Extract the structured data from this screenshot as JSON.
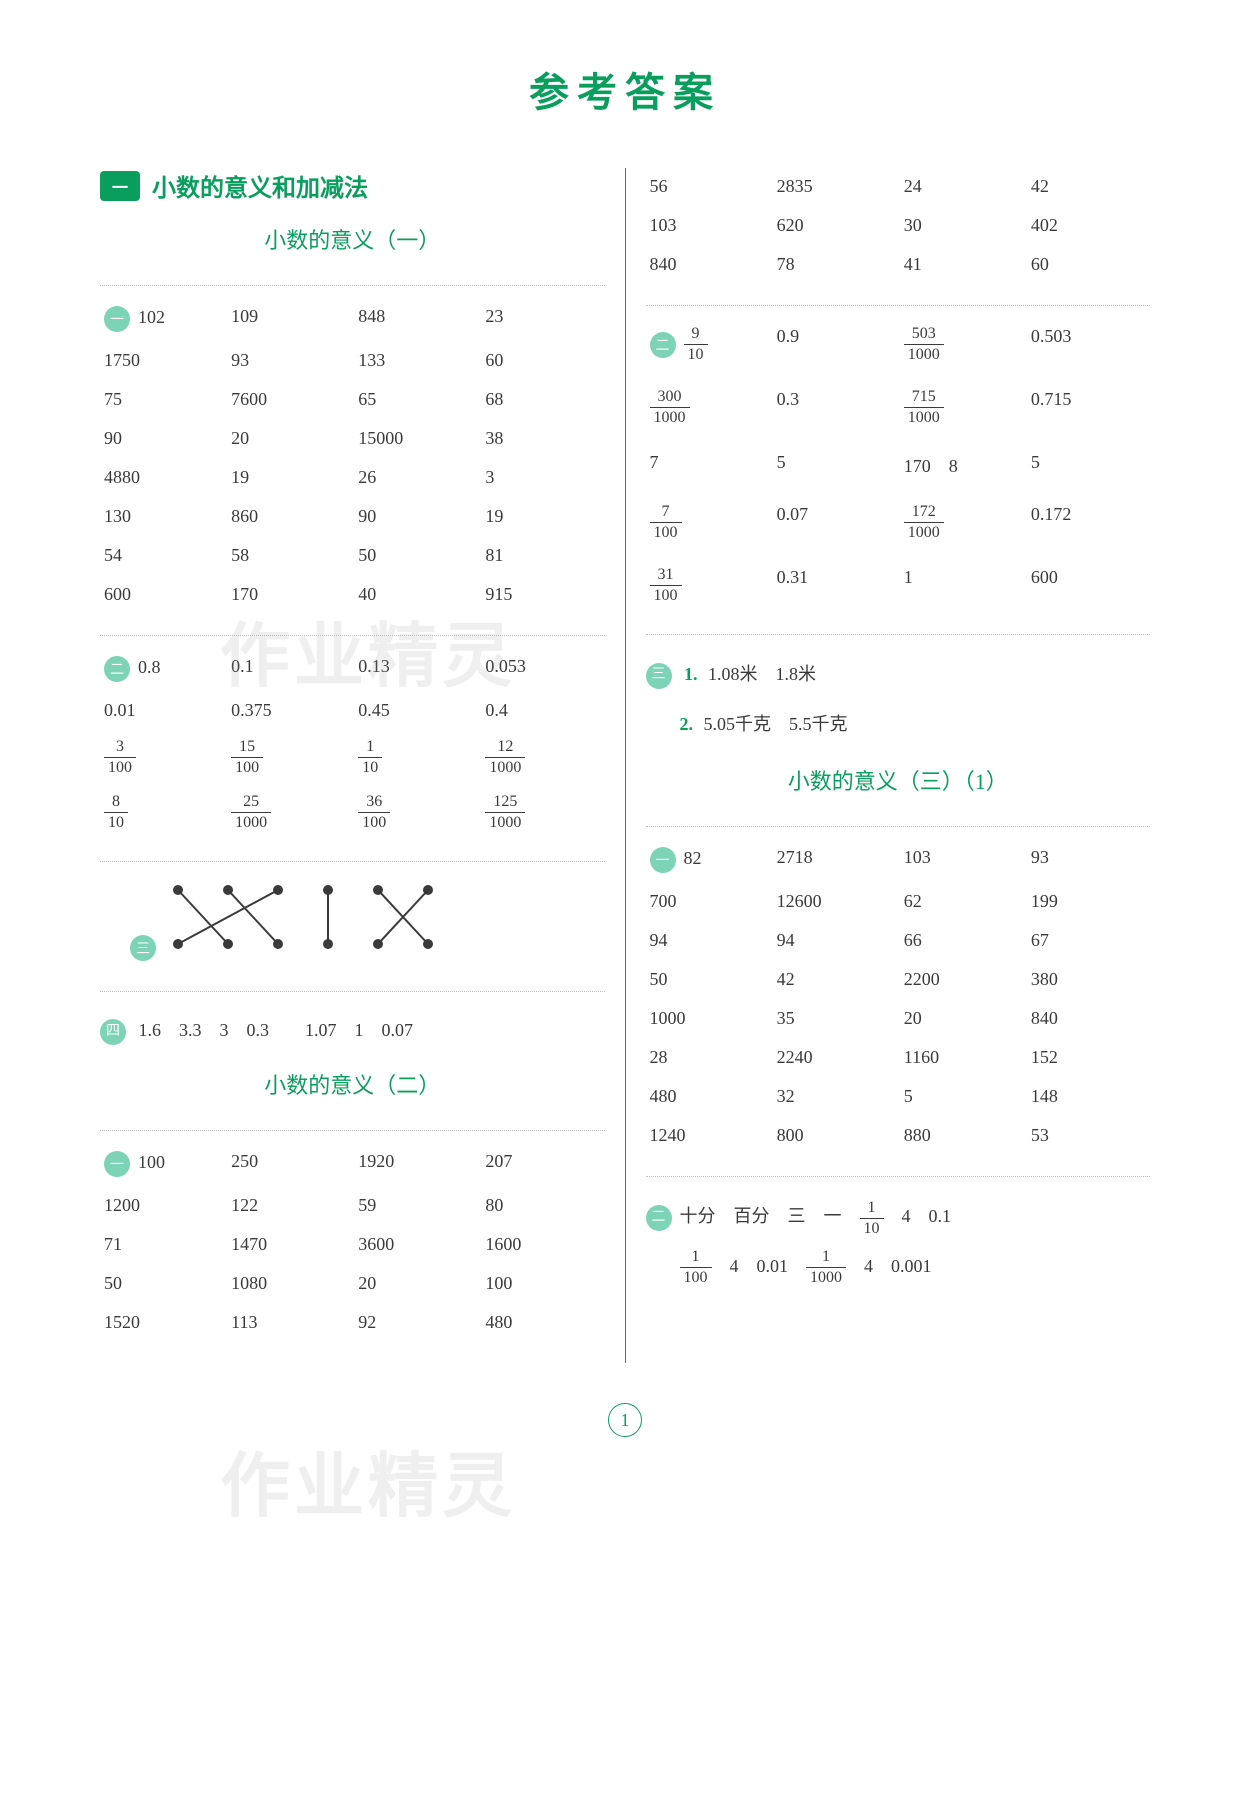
{
  "page_title": "参考答案",
  "page_number": "1",
  "chapter": {
    "badge": "一",
    "title": "小数的意义和加减法"
  },
  "left": {
    "section1": {
      "title": "小数的意义（一）",
      "q1": {
        "badge": "一",
        "rows": [
          [
            "102",
            "109",
            "848",
            "23"
          ],
          [
            "1750",
            "93",
            "133",
            "60"
          ],
          [
            "75",
            "7600",
            "65",
            "68"
          ],
          [
            "90",
            "20",
            "15000",
            "38"
          ],
          [
            "4880",
            "19",
            "26",
            "3"
          ],
          [
            "130",
            "860",
            "90",
            "19"
          ],
          [
            "54",
            "58",
            "50",
            "81"
          ],
          [
            "600",
            "170",
            "40",
            "915"
          ]
        ]
      },
      "q2": {
        "badge": "二",
        "rows_text": [
          [
            "0.8",
            "0.1",
            "0.13",
            "0.053"
          ],
          [
            "0.01",
            "0.375",
            "0.45",
            "0.4"
          ]
        ],
        "rows_frac": [
          [
            {
              "n": "3",
              "d": "100"
            },
            {
              "n": "15",
              "d": "100"
            },
            {
              "n": "1",
              "d": "10"
            },
            {
              "n": "12",
              "d": "1000"
            }
          ],
          [
            {
              "n": "8",
              "d": "10"
            },
            {
              "n": "25",
              "d": "1000"
            },
            {
              "n": "36",
              "d": "100"
            },
            {
              "n": "125",
              "d": "1000"
            }
          ]
        ]
      },
      "q3": {
        "badge": "三"
      },
      "q4": {
        "badge": "四",
        "text": "1.6　3.3　3　0.3　　1.07　1　0.07"
      }
    },
    "section2": {
      "title": "小数的意义（二）",
      "q1": {
        "badge": "一",
        "rows": [
          [
            "100",
            "250",
            "1920",
            "207"
          ],
          [
            "1200",
            "122",
            "59",
            "80"
          ],
          [
            "71",
            "1470",
            "3600",
            "1600"
          ],
          [
            "50",
            "1080",
            "20",
            "100"
          ],
          [
            "1520",
            "113",
            "92",
            "480"
          ]
        ]
      }
    }
  },
  "right": {
    "top_rows": [
      [
        "56",
        "2835",
        "24",
        "42"
      ],
      [
        "103",
        "620",
        "30",
        "402"
      ],
      [
        "840",
        "78",
        "41",
        "60"
      ]
    ],
    "q2": {
      "badge": "二",
      "rows": [
        [
          {
            "type": "frac",
            "n": "9",
            "d": "10"
          },
          {
            "type": "text",
            "v": "0.9"
          },
          {
            "type": "frac",
            "n": "503",
            "d": "1000"
          },
          {
            "type": "text",
            "v": "0.503"
          }
        ],
        [
          {
            "type": "frac",
            "n": "300",
            "d": "1000"
          },
          {
            "type": "text",
            "v": "0.3"
          },
          {
            "type": "frac",
            "n": "715",
            "d": "1000"
          },
          {
            "type": "text",
            "v": "0.715"
          }
        ],
        [
          {
            "type": "text",
            "v": "7"
          },
          {
            "type": "text",
            "v": "5"
          },
          {
            "type": "text",
            "v": "170　8"
          },
          {
            "type": "text",
            "v": "5"
          }
        ],
        [
          {
            "type": "frac",
            "n": "7",
            "d": "100"
          },
          {
            "type": "text",
            "v": "0.07"
          },
          {
            "type": "frac",
            "n": "172",
            "d": "1000"
          },
          {
            "type": "text",
            "v": "0.172"
          }
        ],
        [
          {
            "type": "frac",
            "n": "31",
            "d": "100"
          },
          {
            "type": "text",
            "v": "0.31"
          },
          {
            "type": "text",
            "v": "1"
          },
          {
            "type": "text",
            "v": "600"
          }
        ]
      ]
    },
    "q3": {
      "badge": "三",
      "line1_label": "1.",
      "line1": "1.08米　1.8米",
      "line2_label": "2.",
      "line2": "5.05千克　5.5千克"
    },
    "section3": {
      "title": "小数的意义（三）（1）",
      "q1": {
        "badge": "一",
        "rows": [
          [
            "82",
            "2718",
            "103",
            "93"
          ],
          [
            "700",
            "12600",
            "62",
            "199"
          ],
          [
            "94",
            "94",
            "66",
            "67"
          ],
          [
            "50",
            "42",
            "2200",
            "380"
          ],
          [
            "1000",
            "35",
            "20",
            "840"
          ],
          [
            "28",
            "2240",
            "1160",
            "152"
          ],
          [
            "480",
            "32",
            "5",
            "148"
          ],
          [
            "1240",
            "800",
            "880",
            "53"
          ]
        ]
      },
      "q2": {
        "badge": "二",
        "line1_parts": [
          "十分",
          "百分",
          "三",
          "一"
        ],
        "line1_frac": {
          "n": "1",
          "d": "10"
        },
        "line1_tail": [
          "4",
          "0.1"
        ],
        "line2_frac1": {
          "n": "1",
          "d": "100"
        },
        "line2_mid": [
          "4",
          "0.01"
        ],
        "line2_frac2": {
          "n": "1",
          "d": "1000"
        },
        "line2_tail": [
          "4",
          "0.001"
        ]
      }
    }
  },
  "watermarks": [
    "作业精灵",
    "作业精灵"
  ],
  "colors": {
    "accent": "#0a9e5e",
    "badge_bg": "#7dd3b5",
    "text": "#3a3a3a",
    "divider": "#c0c0c0"
  }
}
